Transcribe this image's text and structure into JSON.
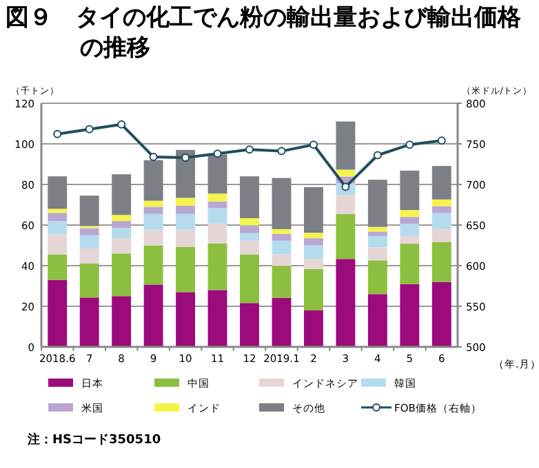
{
  "chart_data": {
    "type": "bar",
    "stacked": true,
    "title": "図９　タイの化工でん粉の輸出量および輸出価格の推移",
    "ylabel": "（千トン）",
    "y2label": "（米ドル/トン）",
    "xlabel": "（年.月）",
    "categories": [
      "2018.6",
      "7",
      "8",
      "9",
      "10",
      "11",
      "12",
      "2019.1",
      "2",
      "3",
      "4",
      "5",
      "6"
    ],
    "series": [
      {
        "name": "日本",
        "color": "#9c0a7c",
        "values": [
          33,
          24.3,
          25,
          30.7,
          27,
          28,
          21.6,
          24.1,
          18,
          43.3,
          26,
          30.9,
          32
        ]
      },
      {
        "name": "中国",
        "color": "#8cbf3f",
        "values": [
          12.5,
          16.7,
          21,
          19.3,
          22.3,
          23,
          23.9,
          15.8,
          20.3,
          22.1,
          16.6,
          19.9,
          19.7
        ]
      },
      {
        "name": "インドネシア",
        "color": "#e6d6d6",
        "values": [
          10,
          7.5,
          7.5,
          7.7,
          8.4,
          9.7,
          6.8,
          5.7,
          5,
          9.5,
          6.4,
          3.8,
          6.3
        ]
      },
      {
        "name": "韓国",
        "color": "#b4dcec",
        "values": [
          6.5,
          6.5,
          5,
          7.8,
          7.8,
          7.7,
          3.7,
          6.7,
          6.7,
          5.6,
          5.6,
          6.1,
          7.9
        ]
      },
      {
        "name": "米国",
        "color": "#b9a6d3",
        "values": [
          4,
          3.5,
          3.5,
          3.5,
          4,
          3.2,
          3.8,
          3.4,
          3.5,
          3.4,
          2.2,
          3.3,
          3.4
        ]
      },
      {
        "name": "インド",
        "color": "#f4f44c",
        "values": [
          2,
          1,
          3,
          3,
          3.9,
          3.9,
          3.6,
          2.3,
          2.7,
          3.4,
          2.3,
          3.4,
          3.3
        ]
      },
      {
        "name": "その他",
        "color": "#7c7f86",
        "values": [
          16,
          15,
          20,
          20,
          23.6,
          19.3,
          20.6,
          25.2,
          22.5,
          23.7,
          23.2,
          19.4,
          16.5
        ]
      },
      {
        "name": "FOB価格（右軸）",
        "color": "#1f4e5e",
        "type": "line",
        "axis": "y2",
        "marker": "circle",
        "line_style": "solid",
        "values": [
          762,
          768,
          774,
          734,
          733,
          738,
          743,
          741,
          749,
          697,
          736,
          749,
          754
        ]
      }
    ],
    "ylim": [
      0,
      120
    ],
    "yticks": [
      0,
      20,
      40,
      60,
      80,
      100,
      120
    ],
    "y2lim": [
      500,
      800
    ],
    "y2ticks": [
      500,
      550,
      600,
      650,
      700,
      750,
      800
    ],
    "grid": "y",
    "legend": "bottom",
    "annotations": [
      "注：HSコード350510"
    ]
  }
}
